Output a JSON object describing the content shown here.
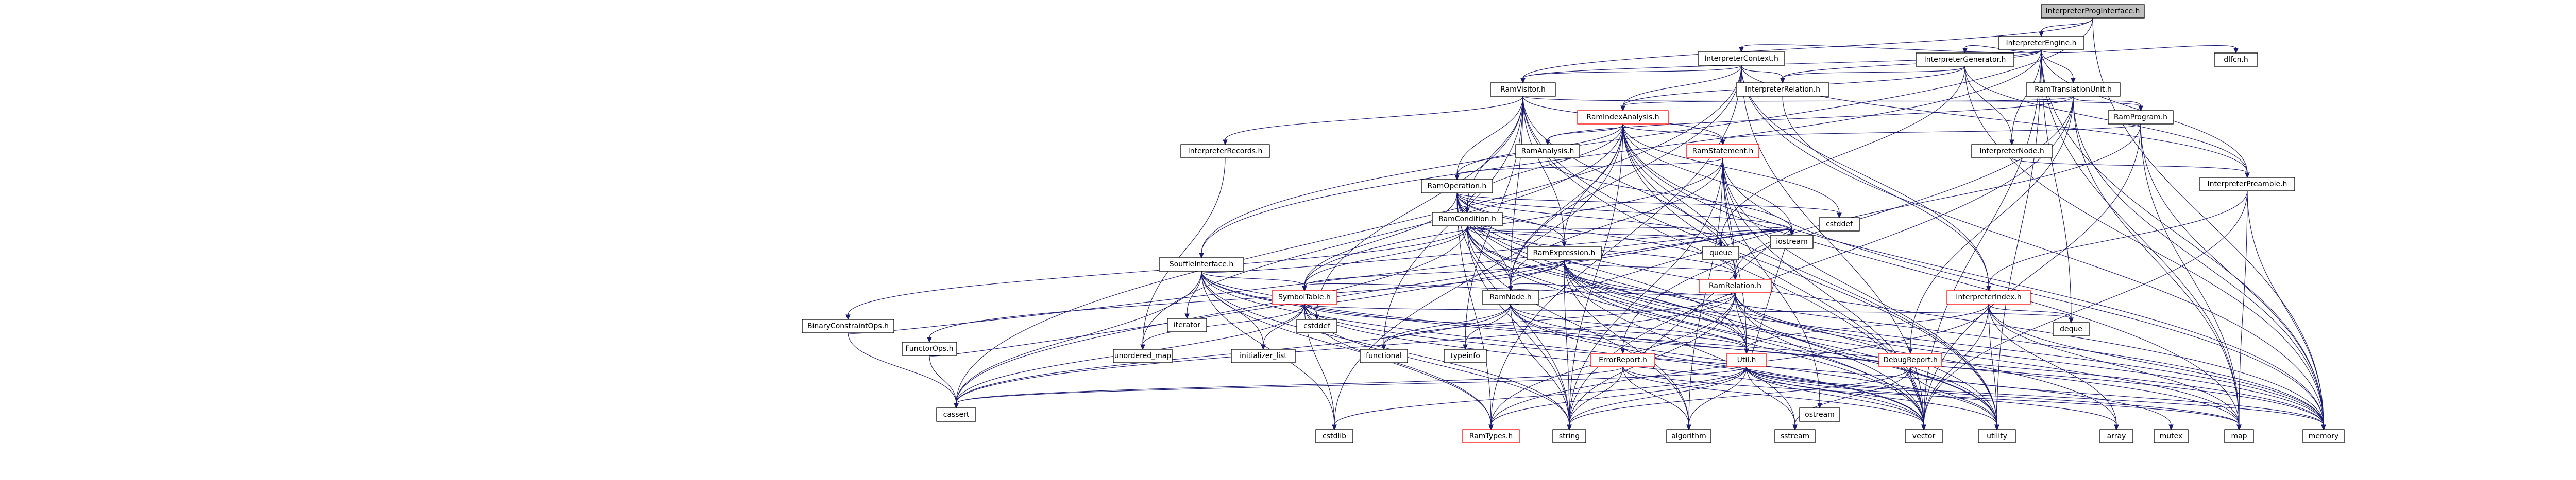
{
  "colors": {
    "background": "#ffffff",
    "root_fill": "#bfbfbf",
    "node_fill": "#ffffff",
    "node_border": "#000000",
    "node_border_highlight": "#ff0000",
    "edge": "#191970"
  },
  "graph": {
    "nodes": [
      {
        "id": "root",
        "label": "InterpreterProgInterface.h",
        "style": "root"
      },
      {
        "id": "engine",
        "label": "InterpreterEngine.h",
        "style": "normal"
      },
      {
        "id": "context",
        "label": "InterpreterContext.h",
        "style": "normal"
      },
      {
        "id": "generator",
        "label": "InterpreterGenerator.h",
        "style": "normal"
      },
      {
        "id": "dlfcn",
        "label": "dlfcn.h",
        "style": "normal"
      },
      {
        "id": "visitor",
        "label": "RamVisitor.h",
        "style": "normal"
      },
      {
        "id": "irelation",
        "label": "InterpreterRelation.h",
        "style": "normal"
      },
      {
        "id": "translation",
        "label": "RamTranslationUnit.h",
        "style": "normal"
      },
      {
        "id": "indexanalysis",
        "label": "RamIndexAnalysis.h",
        "style": "highlight"
      },
      {
        "id": "inode",
        "label": "InterpreterNode.h",
        "style": "normal"
      },
      {
        "id": "program",
        "label": "RamProgram.h",
        "style": "normal"
      },
      {
        "id": "records",
        "label": "InterpreterRecords.h",
        "style": "normal"
      },
      {
        "id": "analysis",
        "label": "RamAnalysis.h",
        "style": "normal"
      },
      {
        "id": "statement",
        "label": "RamStatement.h",
        "style": "highlight"
      },
      {
        "id": "preamble",
        "label": "InterpreterPreamble.h",
        "style": "normal"
      },
      {
        "id": "operation",
        "label": "RamOperation.h",
        "style": "normal"
      },
      {
        "id": "condition",
        "label": "RamCondition.h",
        "style": "normal"
      },
      {
        "id": "iostream",
        "label": "iostream",
        "style": "normal"
      },
      {
        "id": "cstddef_top",
        "label": "cstddef",
        "style": "normal"
      },
      {
        "id": "queue",
        "label": "queue",
        "style": "normal"
      },
      {
        "id": "expression",
        "label": "RamExpression.h",
        "style": "normal"
      },
      {
        "id": "souffleiface",
        "label": "SouffleInterface.h",
        "style": "normal"
      },
      {
        "id": "ramrelation",
        "label": "RamRelation.h",
        "style": "highlight"
      },
      {
        "id": "symboltable",
        "label": "SymbolTable.h",
        "style": "highlight"
      },
      {
        "id": "ramnode",
        "label": "RamNode.h",
        "style": "normal"
      },
      {
        "id": "iindex",
        "label": "InterpreterIndex.h",
        "style": "highlight"
      },
      {
        "id": "binaryconstraint",
        "label": "BinaryConstraintOps.h",
        "style": "normal"
      },
      {
        "id": "functorops",
        "label": "FunctorOps.h",
        "style": "normal"
      },
      {
        "id": "iterator",
        "label": "iterator",
        "style": "normal"
      },
      {
        "id": "cstddef",
        "label": "cstddef",
        "style": "normal"
      },
      {
        "id": "unordered_map",
        "label": "unordered_map",
        "style": "normal"
      },
      {
        "id": "initializer_list",
        "label": "initializer_list",
        "style": "normal"
      },
      {
        "id": "functional",
        "label": "functional",
        "style": "normal"
      },
      {
        "id": "typeinfo",
        "label": "typeinfo",
        "style": "normal"
      },
      {
        "id": "util",
        "label": "Util.h",
        "style": "highlight"
      },
      {
        "id": "errorreport",
        "label": "ErrorReport.h",
        "style": "highlight"
      },
      {
        "id": "debugreport",
        "label": "DebugReport.h",
        "style": "highlight"
      },
      {
        "id": "deque",
        "label": "deque",
        "style": "normal"
      },
      {
        "id": "cassert",
        "label": "cassert",
        "style": "normal"
      },
      {
        "id": "ostream",
        "label": "ostream",
        "style": "normal"
      },
      {
        "id": "cstdlib",
        "label": "cstdlib",
        "style": "normal"
      },
      {
        "id": "ramtypes",
        "label": "RamTypes.h",
        "style": "highlight"
      },
      {
        "id": "string",
        "label": "string",
        "style": "normal"
      },
      {
        "id": "algorithm",
        "label": "algorithm",
        "style": "normal"
      },
      {
        "id": "sstream",
        "label": "sstream",
        "style": "normal"
      },
      {
        "id": "vector",
        "label": "vector",
        "style": "normal"
      },
      {
        "id": "utility",
        "label": "utility",
        "style": "normal"
      },
      {
        "id": "array",
        "label": "array",
        "style": "normal"
      },
      {
        "id": "mutex",
        "label": "mutex",
        "style": "normal"
      },
      {
        "id": "map",
        "label": "map",
        "style": "normal"
      },
      {
        "id": "memory",
        "label": "memory",
        "style": "normal"
      }
    ],
    "edges": [
      [
        "root",
        "engine"
      ],
      [
        "root",
        "visitor"
      ],
      [
        "root",
        "souffleiface"
      ],
      [
        "root",
        "memory"
      ],
      [
        "engine",
        "context"
      ],
      [
        "engine",
        "generator"
      ],
      [
        "engine",
        "dlfcn"
      ],
      [
        "engine",
        "visitor"
      ],
      [
        "engine",
        "irelation"
      ],
      [
        "engine",
        "translation"
      ],
      [
        "engine",
        "inode"
      ],
      [
        "engine",
        "preamble"
      ],
      [
        "engine",
        "souffleiface"
      ],
      [
        "engine",
        "deque"
      ],
      [
        "engine",
        "map"
      ],
      [
        "engine",
        "memory"
      ],
      [
        "engine",
        "vector"
      ],
      [
        "engine",
        "utility"
      ],
      [
        "context",
        "visitor"
      ],
      [
        "context",
        "irelation"
      ],
      [
        "context",
        "indexanalysis"
      ],
      [
        "context",
        "preamble"
      ],
      [
        "context",
        "iindex"
      ],
      [
        "context",
        "ramnode"
      ],
      [
        "context",
        "cassert"
      ],
      [
        "context",
        "ramtypes"
      ],
      [
        "context",
        "memory"
      ],
      [
        "context",
        "vector"
      ],
      [
        "generator",
        "irelation"
      ],
      [
        "generator",
        "indexanalysis"
      ],
      [
        "generator",
        "inode"
      ],
      [
        "generator",
        "preamble"
      ],
      [
        "generator",
        "queue"
      ],
      [
        "generator",
        "memory"
      ],
      [
        "visitor",
        "records"
      ],
      [
        "visitor",
        "program"
      ],
      [
        "visitor",
        "statement"
      ],
      [
        "visitor",
        "operation"
      ],
      [
        "visitor",
        "condition"
      ],
      [
        "visitor",
        "expression"
      ],
      [
        "visitor",
        "ramrelation"
      ],
      [
        "visitor",
        "ramnode"
      ],
      [
        "visitor",
        "functional"
      ],
      [
        "visitor",
        "typeinfo"
      ],
      [
        "visitor",
        "vector"
      ],
      [
        "visitor",
        "utility"
      ],
      [
        "visitor",
        "cstddef"
      ],
      [
        "irelation",
        "iindex"
      ],
      [
        "translation",
        "indexanalysis"
      ],
      [
        "translation",
        "program"
      ],
      [
        "translation",
        "analysis"
      ],
      [
        "translation",
        "debugreport"
      ],
      [
        "translation",
        "errorreport"
      ],
      [
        "translation",
        "map"
      ],
      [
        "translation",
        "memory"
      ],
      [
        "translation",
        "string"
      ],
      [
        "indexanalysis",
        "analysis"
      ],
      [
        "indexanalysis",
        "statement"
      ],
      [
        "indexanalysis",
        "operation"
      ],
      [
        "indexanalysis",
        "condition"
      ],
      [
        "indexanalysis",
        "expression"
      ],
      [
        "indexanalysis",
        "ramrelation"
      ],
      [
        "indexanalysis",
        "ramnode"
      ],
      [
        "indexanalysis",
        "iostream"
      ],
      [
        "indexanalysis",
        "cstddef_top"
      ],
      [
        "indexanalysis",
        "map"
      ],
      [
        "indexanalysis",
        "memory"
      ],
      [
        "indexanalysis",
        "vector"
      ],
      [
        "indexanalysis",
        "string"
      ],
      [
        "indexanalysis",
        "utility"
      ],
      [
        "indexanalysis",
        "cstdlib"
      ],
      [
        "indexanalysis",
        "unordered_map"
      ],
      [
        "inode",
        "preamble"
      ],
      [
        "program",
        "statement"
      ],
      [
        "program",
        "ramrelation"
      ],
      [
        "program",
        "map"
      ],
      [
        "program",
        "memory"
      ],
      [
        "program",
        "vector"
      ],
      [
        "records",
        "unordered_map"
      ],
      [
        "analysis",
        "iostream"
      ],
      [
        "statement",
        "operation"
      ],
      [
        "statement",
        "ramrelation"
      ],
      [
        "statement",
        "symboltable"
      ],
      [
        "statement",
        "ramnode"
      ],
      [
        "statement",
        "util"
      ],
      [
        "statement",
        "memory"
      ],
      [
        "statement",
        "vector"
      ],
      [
        "statement",
        "ostream"
      ],
      [
        "statement",
        "algorithm"
      ],
      [
        "statement",
        "string"
      ],
      [
        "statement",
        "utility"
      ],
      [
        "preamble",
        "iindex"
      ],
      [
        "preamble",
        "map"
      ],
      [
        "preamble",
        "memory"
      ],
      [
        "preamble",
        "vector"
      ],
      [
        "operation",
        "condition"
      ],
      [
        "operation",
        "expression"
      ],
      [
        "operation",
        "ramrelation"
      ],
      [
        "operation",
        "symboltable"
      ],
      [
        "operation",
        "ramnode"
      ],
      [
        "operation",
        "util"
      ],
      [
        "operation",
        "queue"
      ],
      [
        "operation",
        "cstddef_top"
      ],
      [
        "operation",
        "ramtypes"
      ],
      [
        "operation",
        "iostream"
      ],
      [
        "operation",
        "memory"
      ],
      [
        "operation",
        "vector"
      ],
      [
        "operation",
        "string"
      ],
      [
        "operation",
        "utility"
      ],
      [
        "condition",
        "expression"
      ],
      [
        "condition",
        "ramrelation"
      ],
      [
        "condition",
        "symboltable"
      ],
      [
        "condition",
        "ramnode"
      ],
      [
        "condition",
        "binaryconstraint"
      ],
      [
        "condition",
        "util"
      ],
      [
        "condition",
        "queue"
      ],
      [
        "condition",
        "cassert"
      ],
      [
        "condition",
        "iostream"
      ],
      [
        "condition",
        "memory"
      ],
      [
        "condition",
        "string"
      ],
      [
        "condition",
        "algorithm"
      ],
      [
        "condition",
        "vector"
      ],
      [
        "condition",
        "utility"
      ],
      [
        "expression",
        "ramrelation"
      ],
      [
        "expression",
        "ramnode"
      ],
      [
        "expression",
        "symboltable"
      ],
      [
        "expression",
        "functorops"
      ],
      [
        "expression",
        "util"
      ],
      [
        "expression",
        "iostream"
      ],
      [
        "expression",
        "algorithm"
      ],
      [
        "expression",
        "sstream"
      ],
      [
        "expression",
        "string"
      ],
      [
        "expression",
        "vector"
      ],
      [
        "expression",
        "memory"
      ],
      [
        "expression",
        "utility"
      ],
      [
        "expression",
        "array"
      ],
      [
        "souffleiface",
        "symboltable"
      ],
      [
        "souffleiface",
        "ramtypes"
      ],
      [
        "souffleiface",
        "iterator"
      ],
      [
        "souffleiface",
        "cstddef"
      ],
      [
        "souffleiface",
        "initializer_list"
      ],
      [
        "souffleiface",
        "iostream"
      ],
      [
        "souffleiface",
        "cassert"
      ],
      [
        "souffleiface",
        "map"
      ],
      [
        "souffleiface",
        "memory"
      ],
      [
        "souffleiface",
        "string"
      ],
      [
        "souffleiface",
        "vector"
      ],
      [
        "souffleiface",
        "cstdlib"
      ],
      [
        "ramrelation",
        "ramnode"
      ],
      [
        "ramrelation",
        "symboltable"
      ],
      [
        "ramrelation",
        "util"
      ],
      [
        "ramrelation",
        "functional"
      ],
      [
        "ramrelation",
        "cassert"
      ],
      [
        "ramrelation",
        "string"
      ],
      [
        "ramrelation",
        "utility"
      ],
      [
        "ramrelation",
        "ramtypes"
      ],
      [
        "ramrelation",
        "vector"
      ],
      [
        "ramrelation",
        "memory"
      ],
      [
        "ramrelation",
        "map"
      ],
      [
        "symboltable",
        "util"
      ],
      [
        "symboltable",
        "ramtypes"
      ],
      [
        "symboltable",
        "cassert"
      ],
      [
        "symboltable",
        "cstdlib"
      ],
      [
        "symboltable",
        "iostream"
      ],
      [
        "symboltable",
        "deque"
      ],
      [
        "symboltable",
        "string"
      ],
      [
        "symboltable",
        "unordered_map"
      ],
      [
        "symboltable",
        "initializer_list"
      ],
      [
        "symboltable",
        "vector"
      ],
      [
        "symboltable",
        "mutex"
      ],
      [
        "ramnode",
        "util"
      ],
      [
        "ramnode",
        "cassert"
      ],
      [
        "ramnode",
        "functional"
      ],
      [
        "ramnode",
        "iostream"
      ],
      [
        "ramnode",
        "string"
      ],
      [
        "ramnode",
        "typeinfo"
      ],
      [
        "ramnode",
        "vector"
      ],
      [
        "ramnode",
        "memory"
      ],
      [
        "ramnode",
        "utility"
      ],
      [
        "iindex",
        "util"
      ],
      [
        "iindex",
        "deque"
      ],
      [
        "iindex",
        "array"
      ],
      [
        "iindex",
        "map"
      ],
      [
        "iindex",
        "memory"
      ],
      [
        "iindex",
        "utility"
      ],
      [
        "iindex",
        "vector"
      ],
      [
        "iindex",
        "ramtypes"
      ],
      [
        "binaryconstraint",
        "cassert"
      ],
      [
        "binaryconstraint",
        "iostream"
      ],
      [
        "functorops",
        "cassert"
      ],
      [
        "functorops",
        "iostream"
      ],
      [
        "util",
        "ramtypes"
      ],
      [
        "util",
        "cassert"
      ],
      [
        "util",
        "cstdlib"
      ],
      [
        "util",
        "iostream"
      ],
      [
        "util",
        "string"
      ],
      [
        "util",
        "algorithm"
      ],
      [
        "util",
        "sstream"
      ],
      [
        "util",
        "vector"
      ],
      [
        "util",
        "utility"
      ],
      [
        "util",
        "array"
      ],
      [
        "util",
        "map"
      ],
      [
        "util",
        "memory"
      ],
      [
        "errorreport",
        "cassert"
      ],
      [
        "errorreport",
        "iostream"
      ],
      [
        "errorreport",
        "string"
      ],
      [
        "errorreport",
        "algorithm"
      ],
      [
        "errorreport",
        "vector"
      ],
      [
        "errorreport",
        "map"
      ],
      [
        "debugreport",
        "sstream"
      ],
      [
        "debugreport",
        "string"
      ],
      [
        "debugreport",
        "vector"
      ],
      [
        "debugreport",
        "utility"
      ],
      [
        "debugreport",
        "memory"
      ]
    ]
  }
}
